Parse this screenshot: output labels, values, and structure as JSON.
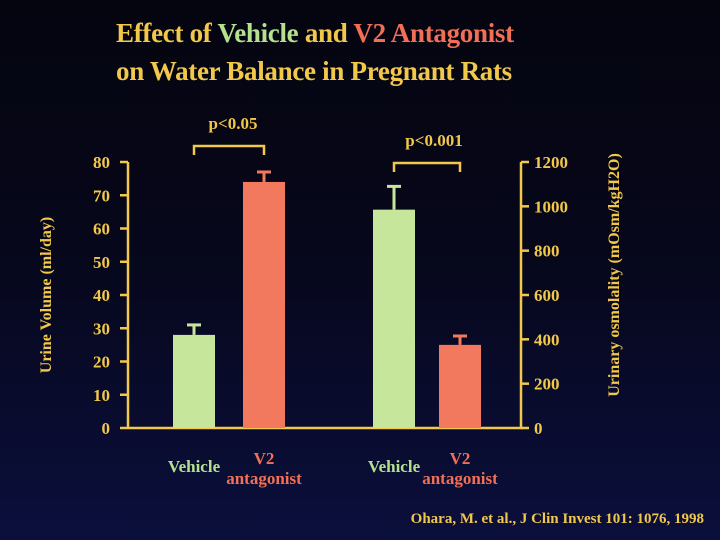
{
  "title": {
    "line1": [
      {
        "text": "Effect of ",
        "color": "#f2c84a"
      },
      {
        "text": "Vehicle",
        "color": "#b5e08f"
      },
      {
        "text": " and ",
        "color": "#f2c84a"
      },
      {
        "text": "V2 Antagonist",
        "color": "#f26f55"
      }
    ],
    "line2": "on Water Balance in Pregnant Rats"
  },
  "citation": "Ohara, M. et al., J Clin Invest 101: 1076, 1998",
  "colors": {
    "axis": "#f2c84a",
    "vehicle": "#c6e79b",
    "antagonist": "#f2795e",
    "vehicle_label": "#b5e08f",
    "antagonist_label": "#f26f55"
  },
  "chart_data": {
    "type": "bar",
    "left_axis": {
      "label": "Urine Volume (ml/day)",
      "ylim": [
        0,
        80
      ],
      "ticks": [
        "0",
        "10",
        "20",
        "30",
        "40",
        "50",
        "60",
        "70",
        "80"
      ]
    },
    "right_axis": {
      "label": "Urinary osmolality (mOsm/kgH2O)",
      "ylim": [
        0,
        1200
      ],
      "ticks": [
        "0",
        "200",
        "400",
        "600",
        "800",
        "1000",
        "1200"
      ]
    },
    "groups": [
      {
        "axis": "left",
        "significance": "p<0.05",
        "bars": [
          {
            "label": "Vehicle",
            "series": "vehicle",
            "value": 28,
            "error": 3
          },
          {
            "label": "V2 antagonist",
            "series": "antagonist",
            "value": 74,
            "error": 3
          }
        ]
      },
      {
        "axis": "right",
        "significance": "p<0.001",
        "bars": [
          {
            "label": "Vehicle",
            "series": "vehicle",
            "value": 985,
            "error": 105
          },
          {
            "label": "V2 antagonist",
            "series": "antagonist",
            "value": 375,
            "error": 40
          }
        ]
      }
    ],
    "grid": false,
    "legend": "none"
  }
}
